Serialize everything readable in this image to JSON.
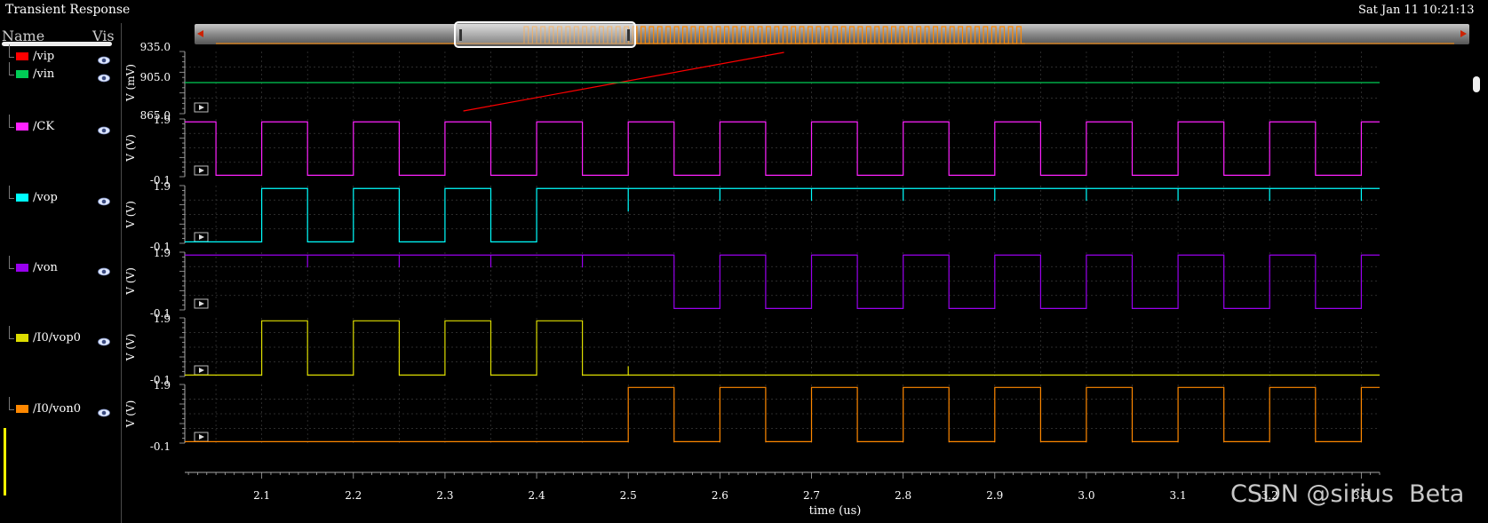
{
  "window": {
    "title": "Transient Response",
    "datetime": "Sat Jan 11 10:21:13"
  },
  "sidebar": {
    "col_name": "Name",
    "col_vis": "Vis",
    "signals": [
      {
        "name": "/vip",
        "color": "#ff0000",
        "eye_icon": "eye-icon"
      },
      {
        "name": "/vin",
        "color": "#00cc55",
        "eye_icon": "eye-icon"
      },
      {
        "name": "/CK",
        "color": "#ff22ff",
        "eye_icon": "eye-icon"
      },
      {
        "name": "/vop",
        "color": "#00ffff",
        "eye_icon": "eye-icon"
      },
      {
        "name": "/von",
        "color": "#9900ee",
        "eye_icon": "eye-icon"
      },
      {
        "name": "/I0/vop0",
        "color": "#dddd00",
        "eye_icon": "eye-icon"
      },
      {
        "name": "/I0/von0",
        "color": "#ff8800",
        "eye_icon": "eye-icon"
      }
    ]
  },
  "chart_data": {
    "type": "line",
    "xlabel": "time (us)",
    "xlim": [
      2.016,
      3.32
    ],
    "x_ticks": [
      "2.1",
      "2.2",
      "2.3",
      "2.4",
      "2.5",
      "2.6",
      "2.7",
      "2.8",
      "2.9",
      "3.0",
      "3.1",
      "3.2",
      "3.3"
    ],
    "grid": true,
    "clock_period_us": 0.1,
    "strips": [
      {
        "ylabel": "V (mV)",
        "ylim": [
          865.0,
          935.0
        ],
        "y_ticks": [
          "935.0",
          "905.0",
          "865.0"
        ],
        "series": [
          {
            "name": "/vip",
            "color": "#ff0000",
            "x": [
              2.32,
              2.67
            ],
            "y": [
              868,
              934
            ]
          },
          {
            "name": "/vin",
            "color": "#00cc55",
            "x": [
              2.016,
              3.32
            ],
            "y": [
              900,
              900
            ]
          }
        ]
      },
      {
        "ylabel": "V (V)",
        "ylim": [
          -0.1,
          1.9
        ],
        "y_ticks": [
          "1.9",
          "-0.1"
        ],
        "series": [
          {
            "name": "/CK",
            "color": "#ff22ff",
            "kind": "clock",
            "high_phase_start": 2.0,
            "duty": 0.5
          }
        ]
      },
      {
        "ylabel": "V (V)",
        "ylim": [
          -0.1,
          1.9
        ],
        "y_ticks": [
          "1.9",
          "-0.1"
        ],
        "series": [
          {
            "name": "/vop",
            "color": "#00ffff",
            "kind": "toggle_then_high",
            "switch_at": 2.45
          }
        ]
      },
      {
        "ylabel": "V (V)",
        "ylim": [
          -0.1,
          1.9
        ],
        "y_ticks": [
          "1.9",
          "-0.1"
        ],
        "series": [
          {
            "name": "/von",
            "color": "#9900ee",
            "kind": "high_then_toggle",
            "switch_at": 2.5
          }
        ]
      },
      {
        "ylabel": "V (V)",
        "ylim": [
          -0.1,
          1.9
        ],
        "y_ticks": [
          "1.9",
          "-0.1"
        ],
        "series": [
          {
            "name": "/I0/vop0",
            "color": "#dddd00",
            "kind": "toggle_then_low",
            "switch_at": 2.45
          }
        ]
      },
      {
        "ylabel": "V (V)",
        "ylim": [
          -0.1,
          1.9
        ],
        "y_ticks": [
          "1.9",
          "-0.1"
        ],
        "series": [
          {
            "name": "/I0/von0",
            "color": "#ff8800",
            "kind": "low_then_toggle",
            "switch_at": 2.5
          }
        ]
      }
    ]
  },
  "watermark": "CSDN @sirius  Beta"
}
